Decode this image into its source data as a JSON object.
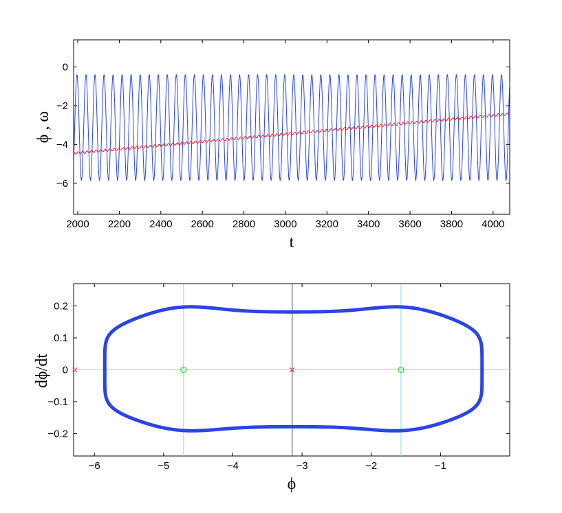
{
  "chart_data": [
    {
      "type": "line",
      "xlabel": "t",
      "ylabel": "ϕ , ω",
      "xlim": [
        1980,
        4080
      ],
      "ylim": [
        -7.6,
        1.4
      ],
      "xticks": [
        "2000",
        "2200",
        "2400",
        "2600",
        "2800",
        "3000",
        "3200",
        "3400",
        "3600",
        "3800",
        "4000"
      ],
      "yticks": [
        "0",
        "−2",
        "−4",
        "−6"
      ],
      "grid": false,
      "series": [
        {
          "color": "#2a44e6",
          "style": "oscillation",
          "period": 43.5,
          "min": -5.85,
          "max": -0.4,
          "phase_t": 1996
        },
        {
          "color": "#e8141e",
          "style": "slow-drift",
          "x": [
            1980,
            4080
          ],
          "y": [
            -4.45,
            -2.42
          ]
        }
      ]
    },
    {
      "type": "scatter",
      "xlabel": "ϕ",
      "ylabel": "dϕ/dt",
      "xlim": [
        -6.3,
        0
      ],
      "ylim": [
        -0.27,
        0.27
      ],
      "xticks": [
        "−6",
        "−5",
        "−4",
        "−3",
        "−2",
        "−1"
      ],
      "yticks": [
        "0.2",
        "0.1",
        "0",
        "−0.1",
        "−0.2"
      ],
      "grid": false,
      "orbit": {
        "color": "#2a44e6",
        "phi_min": -5.85,
        "phi_max": -0.4,
        "peak_upper": 0.212,
        "saddle_upper": 0.181,
        "peak_lower": -0.205,
        "saddle_lower": -0.178
      },
      "reference_lines": {
        "vertical": [
          {
            "x": -4.712,
            "color": "#7fe3ec"
          },
          {
            "x": -3.1416,
            "color": "#505050"
          },
          {
            "x": -1.5708,
            "color": "#7fe3ec"
          }
        ],
        "horizontal": [
          {
            "y": 0,
            "color": "#7fe3ec"
          }
        ]
      },
      "markers": [
        {
          "x": -6.2832,
          "y": 0,
          "shape": "x",
          "color": "#e8141e"
        },
        {
          "x": -3.1416,
          "y": 0,
          "shape": "x",
          "color": "#e8141e"
        },
        {
          "x": -4.712,
          "y": 0,
          "shape": "circle",
          "color": "#33dd33"
        },
        {
          "x": -1.5708,
          "y": 0,
          "shape": "circle",
          "color": "#33dd33"
        }
      ]
    }
  ]
}
